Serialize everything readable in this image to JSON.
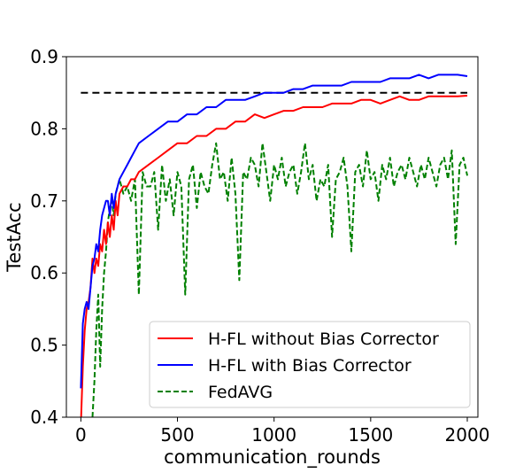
{
  "chart_data": {
    "type": "line",
    "title": "",
    "xlabel": "communication_rounds",
    "ylabel": "TestAcc",
    "xlim": [
      -75,
      2055
    ],
    "ylim": [
      0.4,
      0.9
    ],
    "xticks": [
      0,
      500,
      1000,
      1500,
      2000
    ],
    "yticks": [
      0.4,
      0.5,
      0.6,
      0.7,
      0.8,
      0.9
    ],
    "xtick_labels": [
      "0",
      "500",
      "1000",
      "1500",
      "2000"
    ],
    "ytick_labels": [
      "0.4",
      "0.5",
      "0.6",
      "0.7",
      "0.8",
      "0.9"
    ],
    "grid": false,
    "legend_position": "lower-right",
    "reference_line": {
      "y": 0.85,
      "x_start": 0,
      "x_end": 2000,
      "color": "#000000",
      "style": "dashed"
    },
    "series": [
      {
        "name": "H-FL without Bias Corrector",
        "color": "#ff0000",
        "style": "solid",
        "x": [
          0,
          10,
          20,
          30,
          40,
          50,
          60,
          70,
          80,
          90,
          100,
          110,
          120,
          130,
          140,
          150,
          160,
          170,
          180,
          190,
          200,
          220,
          240,
          260,
          280,
          300,
          350,
          400,
          450,
          500,
          550,
          600,
          650,
          700,
          750,
          800,
          850,
          900,
          950,
          1000,
          1050,
          1100,
          1150,
          1200,
          1250,
          1300,
          1350,
          1400,
          1450,
          1500,
          1550,
          1600,
          1650,
          1700,
          1750,
          1800,
          1850,
          1900,
          1950,
          2000
        ],
        "y": [
          0.39,
          0.47,
          0.52,
          0.55,
          0.56,
          0.58,
          0.62,
          0.6,
          0.62,
          0.61,
          0.64,
          0.63,
          0.66,
          0.64,
          0.67,
          0.65,
          0.68,
          0.66,
          0.7,
          0.68,
          0.71,
          0.72,
          0.72,
          0.73,
          0.73,
          0.74,
          0.75,
          0.76,
          0.77,
          0.78,
          0.78,
          0.79,
          0.79,
          0.8,
          0.8,
          0.81,
          0.81,
          0.82,
          0.815,
          0.82,
          0.825,
          0.825,
          0.83,
          0.83,
          0.83,
          0.835,
          0.835,
          0.835,
          0.84,
          0.84,
          0.835,
          0.84,
          0.845,
          0.84,
          0.84,
          0.845,
          0.845,
          0.845,
          0.845,
          0.846
        ]
      },
      {
        "name": "H-FL with Bias Corrector",
        "color": "#0000ff",
        "style": "solid",
        "x": [
          0,
          10,
          20,
          30,
          40,
          50,
          60,
          70,
          80,
          90,
          100,
          110,
          120,
          130,
          140,
          150,
          160,
          170,
          180,
          190,
          200,
          220,
          240,
          260,
          280,
          300,
          350,
          400,
          450,
          500,
          550,
          600,
          650,
          700,
          750,
          800,
          850,
          900,
          950,
          1000,
          1050,
          1100,
          1150,
          1200,
          1250,
          1300,
          1350,
          1400,
          1450,
          1500,
          1550,
          1600,
          1650,
          1700,
          1750,
          1800,
          1850,
          1900,
          1950,
          2000
        ],
        "y": [
          0.44,
          0.53,
          0.55,
          0.56,
          0.55,
          0.58,
          0.61,
          0.62,
          0.64,
          0.63,
          0.66,
          0.68,
          0.69,
          0.7,
          0.7,
          0.68,
          0.71,
          0.69,
          0.71,
          0.72,
          0.73,
          0.74,
          0.75,
          0.76,
          0.77,
          0.78,
          0.79,
          0.8,
          0.81,
          0.81,
          0.82,
          0.82,
          0.83,
          0.83,
          0.84,
          0.84,
          0.84,
          0.845,
          0.85,
          0.85,
          0.85,
          0.855,
          0.855,
          0.86,
          0.86,
          0.86,
          0.86,
          0.865,
          0.865,
          0.865,
          0.865,
          0.87,
          0.87,
          0.87,
          0.875,
          0.87,
          0.875,
          0.875,
          0.875,
          0.873
        ]
      },
      {
        "name": "FedAVG",
        "color": "#008000",
        "style": "dashed",
        "x": [
          60,
          70,
          80,
          90,
          100,
          110,
          120,
          130,
          140,
          150,
          160,
          170,
          180,
          190,
          200,
          220,
          240,
          260,
          280,
          300,
          320,
          340,
          360,
          380,
          400,
          420,
          440,
          460,
          480,
          500,
          520,
          540,
          560,
          580,
          600,
          620,
          640,
          660,
          680,
          700,
          720,
          740,
          760,
          780,
          800,
          820,
          840,
          860,
          880,
          900,
          920,
          940,
          960,
          980,
          1000,
          1020,
          1040,
          1060,
          1080,
          1100,
          1120,
          1140,
          1160,
          1180,
          1200,
          1220,
          1240,
          1260,
          1280,
          1300,
          1320,
          1340,
          1360,
          1380,
          1400,
          1420,
          1440,
          1460,
          1480,
          1500,
          1520,
          1540,
          1560,
          1580,
          1600,
          1620,
          1640,
          1660,
          1680,
          1700,
          1720,
          1740,
          1760,
          1780,
          1800,
          1820,
          1840,
          1860,
          1880,
          1900,
          1920,
          1940,
          1960,
          1980,
          2000
        ],
        "y": [
          0.4,
          0.45,
          0.52,
          0.57,
          0.47,
          0.55,
          0.6,
          0.63,
          0.67,
          0.69,
          0.7,
          0.68,
          0.71,
          0.72,
          0.73,
          0.71,
          0.72,
          0.7,
          0.73,
          0.57,
          0.74,
          0.72,
          0.72,
          0.74,
          0.66,
          0.75,
          0.7,
          0.73,
          0.68,
          0.74,
          0.72,
          0.57,
          0.73,
          0.75,
          0.69,
          0.74,
          0.72,
          0.71,
          0.75,
          0.78,
          0.73,
          0.74,
          0.7,
          0.76,
          0.71,
          0.59,
          0.74,
          0.73,
          0.76,
          0.75,
          0.72,
          0.78,
          0.74,
          0.7,
          0.75,
          0.73,
          0.76,
          0.72,
          0.74,
          0.75,
          0.71,
          0.74,
          0.78,
          0.73,
          0.75,
          0.7,
          0.73,
          0.72,
          0.75,
          0.65,
          0.73,
          0.74,
          0.76,
          0.72,
          0.63,
          0.74,
          0.75,
          0.72,
          0.77,
          0.73,
          0.74,
          0.7,
          0.75,
          0.73,
          0.76,
          0.72,
          0.74,
          0.75,
          0.73,
          0.76,
          0.74,
          0.72,
          0.75,
          0.73,
          0.76,
          0.74,
          0.72,
          0.75,
          0.76,
          0.73,
          0.77,
          0.64,
          0.75,
          0.76,
          0.735
        ]
      }
    ]
  }
}
